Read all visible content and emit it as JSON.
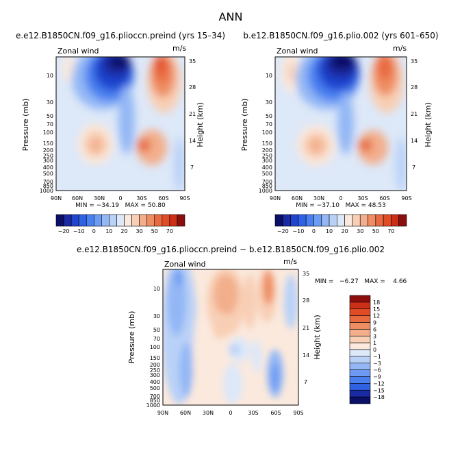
{
  "page_title": "ANN",
  "colors": {
    "levels": [
      "#0b0f66",
      "#1a2aa3",
      "#1f45cf",
      "#2e62e3",
      "#4a7ff0",
      "#6d9bf3",
      "#93b7f5",
      "#b9d1f7",
      "#dde8f8",
      "#fbe9dd",
      "#f8cfb5",
      "#f3af8c",
      "#ee8c62",
      "#e86a40",
      "#e04c26",
      "#cc2f17",
      "#8a0e0e"
    ]
  },
  "chart_data": [
    {
      "type": "heatmap",
      "title": "e.e12.B1850CN.f09_g16.plioccn.preind (yrs 15–34)",
      "subtitle_left": "Zonal wind",
      "units": "m/s",
      "ylabel": "Pressure (mb)",
      "y2label": "Height (km)",
      "x_ticks": [
        "90N",
        "60N",
        "30N",
        "0",
        "30S",
        "60S",
        "90S"
      ],
      "y_ticks": [
        "10",
        "30",
        "50",
        "70",
        "100",
        "150",
        "200",
        "250",
        "300",
        "400",
        "500",
        "700",
        "850",
        "1000"
      ],
      "y2_ticks": [
        "35",
        "28",
        "21",
        "14",
        "7"
      ],
      "stats": "MIN = −34.19   MAX = 50.80",
      "colorbar_labels": [
        "−20",
        "−10",
        "0",
        "10",
        "20",
        "30",
        "50",
        "70"
      ]
    },
    {
      "type": "heatmap",
      "title": "b.e12.B1850CN.f09_g16.plio.002 (yrs 601–650)",
      "subtitle_left": "Zonal wind",
      "units": "m/s",
      "ylabel": "Pressure (mb)",
      "y2label": "Height (km)",
      "x_ticks": [
        "90N",
        "60N",
        "30N",
        "0",
        "30S",
        "60S",
        "90S"
      ],
      "y_ticks": [
        "10",
        "30",
        "50",
        "70",
        "100",
        "150",
        "200",
        "250",
        "300",
        "400",
        "500",
        "700",
        "850",
        "1000"
      ],
      "y2_ticks": [
        "35",
        "28",
        "21",
        "14",
        "7"
      ],
      "stats": "MIN = −37.10   MAX = 48.53",
      "colorbar_labels": [
        "−20",
        "−10",
        "0",
        "10",
        "20",
        "30",
        "50",
        "70"
      ]
    },
    {
      "type": "heatmap",
      "title": "e.e12.B1850CN.f09_g16.plioccn.preind − b.e12.B1850CN.f09_g16.plio.002",
      "subtitle_left": "Zonal wind",
      "units": "m/s",
      "ylabel": "Pressure (mb)",
      "y2label": "Height (km)",
      "x_ticks": [
        "90N",
        "60N",
        "30N",
        "0",
        "30S",
        "60S",
        "90S"
      ],
      "y_ticks": [
        "10",
        "30",
        "50",
        "70",
        "100",
        "150",
        "200",
        "250",
        "300",
        "400",
        "500",
        "700",
        "850",
        "1000"
      ],
      "y2_ticks": [
        "35",
        "28",
        "21",
        "14",
        "7"
      ],
      "stats": "MIN =   −6.27   MAX =    4.66",
      "colorbar_labels": [
        "18",
        "15",
        "12",
        "9",
        "6",
        "3",
        "1",
        "0",
        "−1",
        "−3",
        "−6",
        "−9",
        "−12",
        "−15",
        "−18"
      ]
    }
  ]
}
